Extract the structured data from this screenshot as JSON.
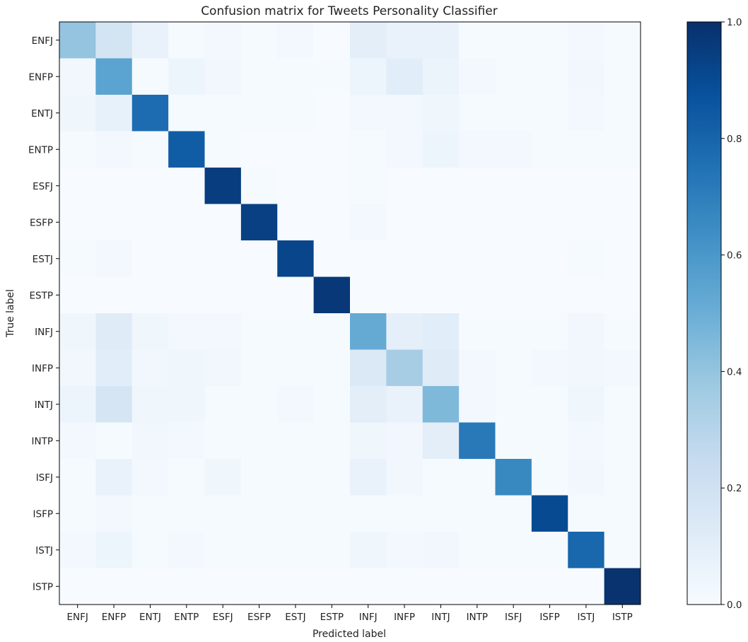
{
  "chart_data": {
    "type": "heatmap",
    "title": "Confusion matrix for Tweets Personality Classifier",
    "xlabel": "Predicted label",
    "ylabel": "True label",
    "x_categories": [
      "ENFJ",
      "ENFP",
      "ENTJ",
      "ENTP",
      "ESFJ",
      "ESFP",
      "ESTJ",
      "ESTP",
      "INFJ",
      "INFP",
      "INTJ",
      "INTP",
      "ISFJ",
      "ISFP",
      "ISTJ",
      "ISTP"
    ],
    "y_categories": [
      "ENFJ",
      "ENFP",
      "ENTJ",
      "ENTP",
      "ESFJ",
      "ESFP",
      "ESTJ",
      "ESTP",
      "INFJ",
      "INFP",
      "INTJ",
      "INTP",
      "ISFJ",
      "ISFP",
      "ISTJ",
      "ISTP"
    ],
    "values": [
      [
        0.4,
        0.18,
        0.07,
        0.01,
        0.02,
        0.01,
        0.02,
        0.0,
        0.1,
        0.07,
        0.07,
        0.01,
        0.01,
        0.01,
        0.02,
        0.01
      ],
      [
        0.03,
        0.55,
        0.01,
        0.05,
        0.03,
        0.01,
        0.01,
        0.01,
        0.05,
        0.11,
        0.06,
        0.02,
        0.01,
        0.01,
        0.03,
        0.01
      ],
      [
        0.04,
        0.08,
        0.77,
        0.01,
        0.01,
        0.01,
        0.01,
        0.0,
        0.02,
        0.02,
        0.04,
        0.01,
        0.01,
        0.01,
        0.02,
        0.01
      ],
      [
        0.01,
        0.02,
        0.01,
        0.83,
        0.01,
        0.0,
        0.0,
        0.0,
        0.01,
        0.02,
        0.05,
        0.02,
        0.02,
        0.01,
        0.01,
        0.01
      ],
      [
        0.0,
        0.0,
        0.0,
        0.0,
        0.95,
        0.01,
        0.0,
        0.0,
        0.01,
        0.0,
        0.0,
        0.0,
        0.0,
        0.0,
        0.0,
        0.0
      ],
      [
        0.0,
        0.0,
        0.0,
        0.0,
        0.0,
        0.94,
        0.0,
        0.0,
        0.02,
        0.0,
        0.0,
        0.0,
        0.0,
        0.0,
        0.0,
        0.0
      ],
      [
        0.01,
        0.02,
        0.0,
        0.0,
        0.0,
        0.0,
        0.92,
        0.0,
        0.0,
        0.0,
        0.0,
        0.0,
        0.0,
        0.0,
        0.01,
        0.0
      ],
      [
        0.0,
        0.0,
        0.0,
        0.0,
        0.0,
        0.0,
        0.0,
        0.97,
        0.0,
        0.0,
        0.0,
        0.0,
        0.0,
        0.0,
        0.0,
        0.0
      ],
      [
        0.04,
        0.12,
        0.04,
        0.02,
        0.02,
        0.01,
        0.01,
        0.01,
        0.52,
        0.09,
        0.11,
        0.01,
        0.01,
        0.01,
        0.03,
        0.01
      ],
      [
        0.03,
        0.11,
        0.03,
        0.04,
        0.03,
        0.01,
        0.01,
        0.01,
        0.14,
        0.35,
        0.12,
        0.02,
        0.01,
        0.02,
        0.03,
        0.02
      ],
      [
        0.05,
        0.17,
        0.04,
        0.04,
        0.01,
        0.01,
        0.02,
        0.01,
        0.1,
        0.07,
        0.45,
        0.02,
        0.01,
        0.01,
        0.04,
        0.01
      ],
      [
        0.02,
        0.01,
        0.03,
        0.02,
        0.01,
        0.01,
        0.01,
        0.01,
        0.04,
        0.03,
        0.1,
        0.72,
        0.01,
        0.01,
        0.02,
        0.01
      ],
      [
        0.01,
        0.07,
        0.02,
        0.01,
        0.04,
        0.01,
        0.01,
        0.01,
        0.07,
        0.03,
        0.01,
        0.01,
        0.66,
        0.01,
        0.03,
        0.01
      ],
      [
        0.01,
        0.02,
        0.01,
        0.01,
        0.01,
        0.01,
        0.01,
        0.01,
        0.01,
        0.01,
        0.01,
        0.01,
        0.01,
        0.9,
        0.01,
        0.01
      ],
      [
        0.02,
        0.05,
        0.01,
        0.02,
        0.01,
        0.01,
        0.01,
        0.01,
        0.04,
        0.02,
        0.03,
        0.01,
        0.01,
        0.01,
        0.79,
        0.01
      ],
      [
        0.0,
        0.0,
        0.0,
        0.0,
        0.0,
        0.0,
        0.0,
        0.0,
        0.0,
        0.0,
        0.0,
        0.0,
        0.0,
        0.0,
        0.0,
        0.99
      ]
    ],
    "vmin": 0.0,
    "vmax": 1.0,
    "colormap": "Blues",
    "colormap_low": "#f7fbff",
    "colormap_high": "#08306b",
    "colorbar_ticks": [
      "0.0",
      "0.2",
      "0.4",
      "0.6",
      "0.8",
      "1.0"
    ],
    "colorbar_tick_values": [
      0.0,
      0.2,
      0.4,
      0.6,
      0.8,
      1.0
    ],
    "grid": false
  }
}
